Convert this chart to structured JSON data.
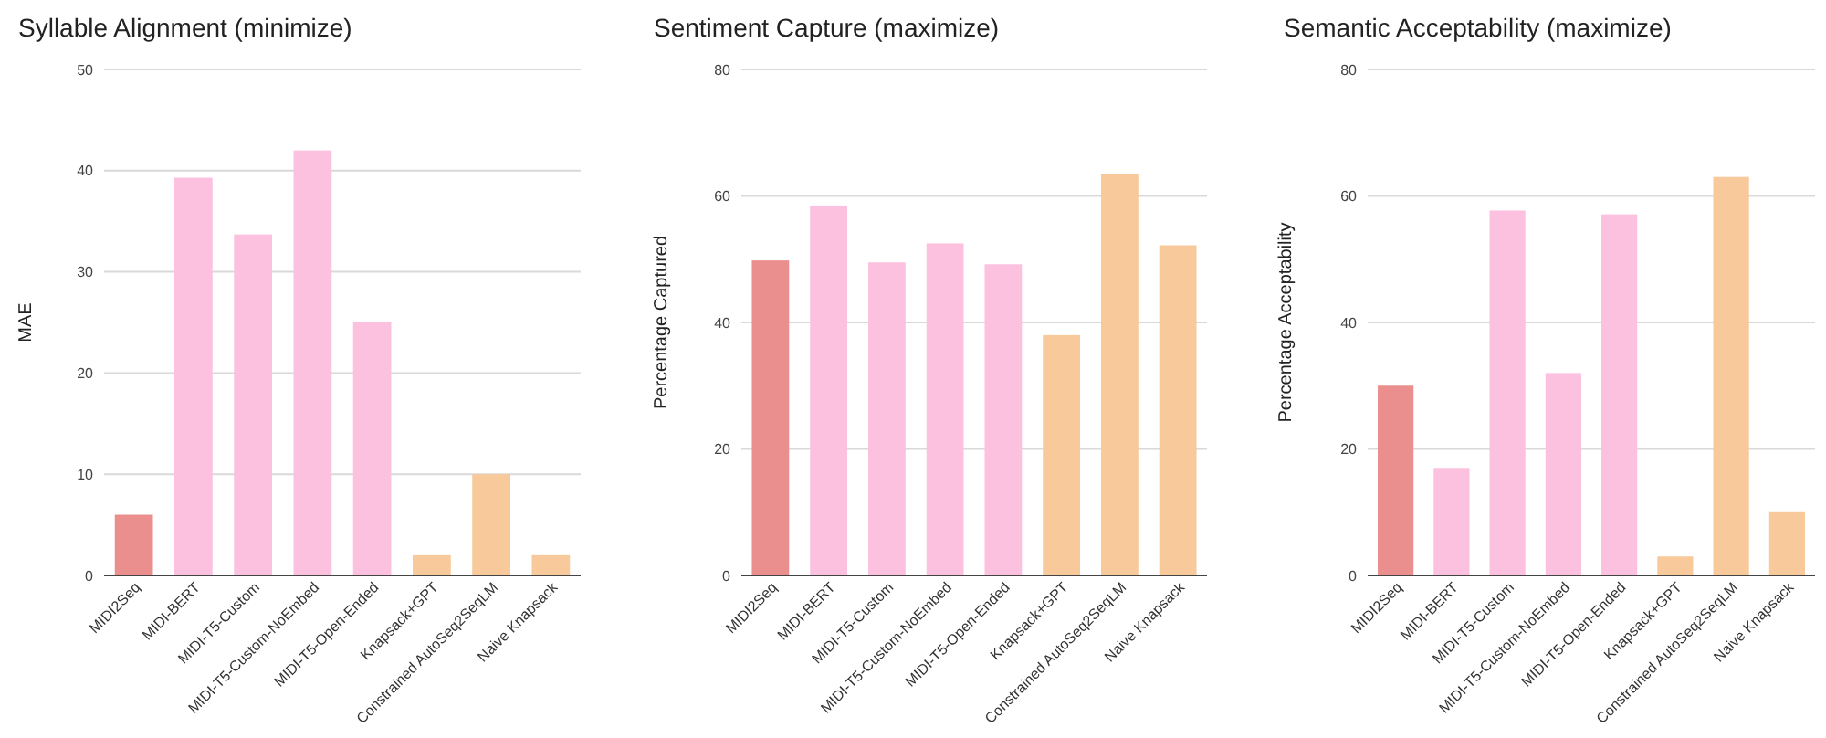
{
  "chart_data": [
    {
      "type": "bar",
      "title": "Syllable Alignment (minimize)",
      "ylabel": "MAE",
      "categories": [
        "MIDI2Seq",
        "MIDI-BERT",
        "MIDI-T5-Custom",
        "MIDI-T5-Custom-NoEmbed",
        "MIDI-T5-Open-Ended",
        "Knapsack+GPT",
        "Constrained AutoSeq2SeqLM",
        "Naive Knapsack"
      ],
      "values": [
        6,
        39.3,
        33.7,
        42,
        25,
        2,
        10,
        2
      ],
      "colors": [
        "#ea8f8e",
        "#fdc1e0",
        "#fdc1e0",
        "#fdc1e0",
        "#fdc1e0",
        "#f8c99b",
        "#f8c99b",
        "#f8c99b"
      ],
      "ylim": [
        0,
        50
      ],
      "yticks": [
        0,
        10,
        20,
        30,
        40,
        50
      ],
      "grid": "y"
    },
    {
      "type": "bar",
      "title": "Sentiment Capture (maximize)",
      "ylabel": "Percentage Captured",
      "categories": [
        "MIDI2Seq",
        "MIDI-BERT",
        "MIDI-T5-Custom",
        "MIDI-T5-Custom-NoEmbed",
        "MIDI-T5-Open-Ended",
        "Knapsack+GPT",
        "Constrained AutoSeq2SeqLM",
        "Naive Knapsack"
      ],
      "values": [
        49.8,
        58.5,
        49.5,
        52.5,
        49.2,
        38,
        63.5,
        52.2
      ],
      "colors": [
        "#ea8f8e",
        "#fdc1e0",
        "#fdc1e0",
        "#fdc1e0",
        "#fdc1e0",
        "#f8c99b",
        "#f8c99b",
        "#f8c99b"
      ],
      "ylim": [
        0,
        80
      ],
      "yticks": [
        0,
        20,
        40,
        60,
        80
      ],
      "grid": "y"
    },
    {
      "type": "bar",
      "title": "Semantic Acceptability (maximize)",
      "ylabel": "Percentage Acceptability",
      "categories": [
        "MIDI2Seq",
        "MIDI-BERT",
        "MIDI-T5-Custom",
        "MIDI-T5-Custom-NoEmbed",
        "MIDI-T5-Open-Ended",
        "Knapsack+GPT",
        "Constrained AutoSeq2SeqLM",
        "Naive Knapsack"
      ],
      "values": [
        30,
        17,
        57.7,
        32,
        57.1,
        3,
        63,
        10
      ],
      "colors": [
        "#ea8f8e",
        "#fdc1e0",
        "#fdc1e0",
        "#fdc1e0",
        "#fdc1e0",
        "#f8c99b",
        "#f8c99b",
        "#f8c99b"
      ],
      "ylim": [
        0,
        80
      ],
      "yticks": [
        0,
        20,
        40,
        60,
        80
      ],
      "grid": "y"
    }
  ]
}
